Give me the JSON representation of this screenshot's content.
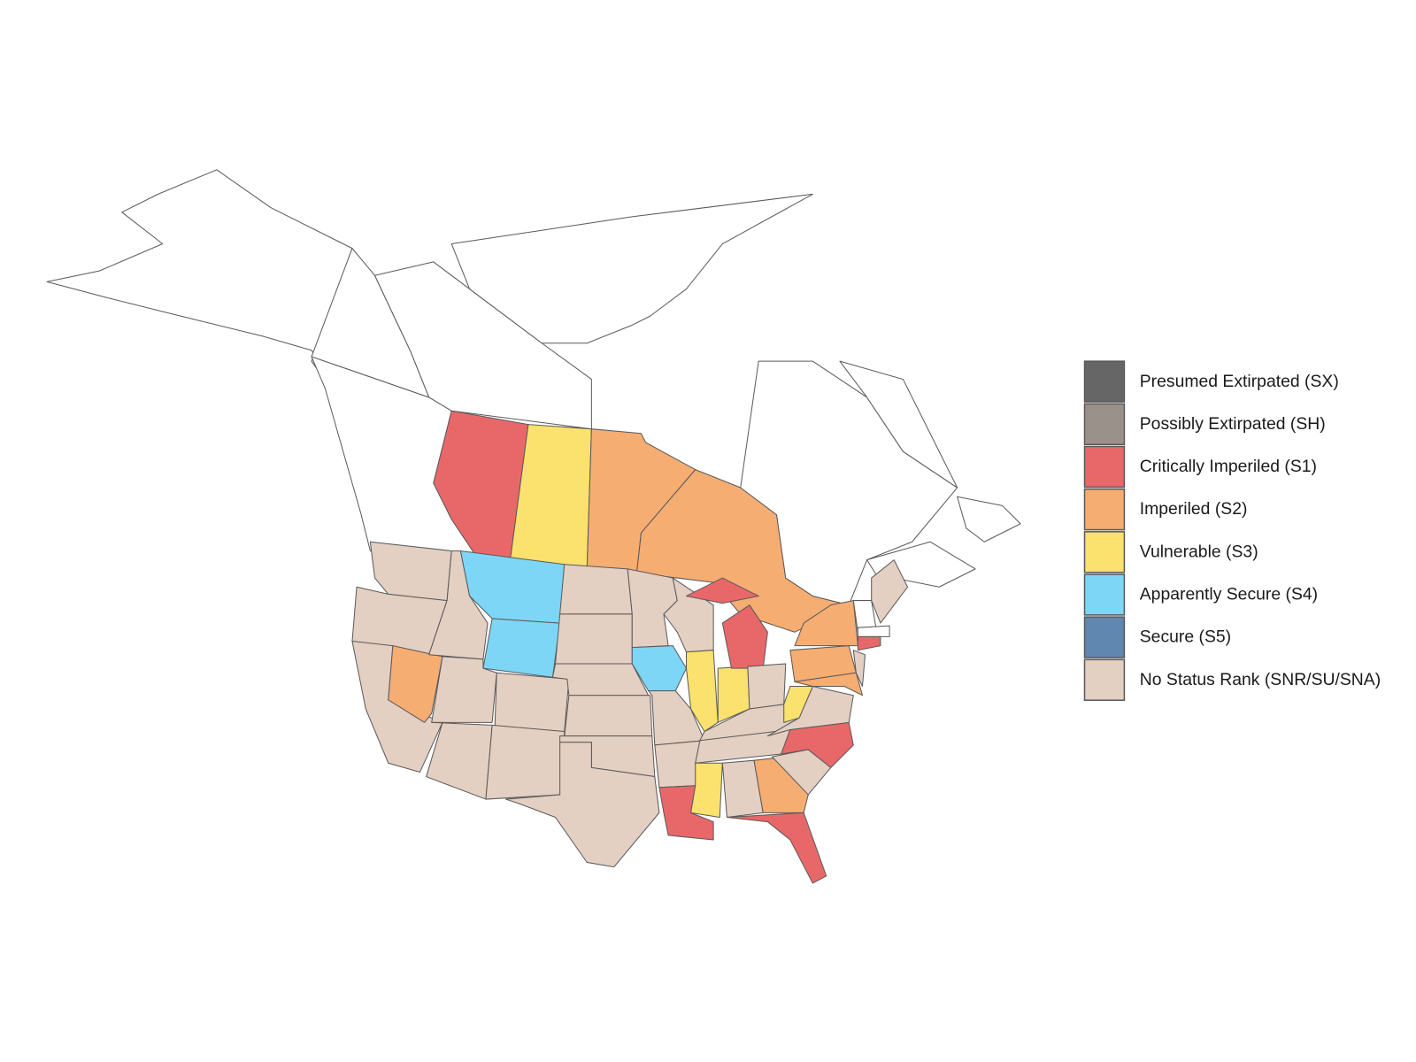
{
  "legend": {
    "items": [
      {
        "label": "Presumed Extirpated (SX)",
        "color": "#666666"
      },
      {
        "label": "Possibly Extirpated (SH)",
        "color": "#9a928a"
      },
      {
        "label": "Critically Imperiled (S1)",
        "color": "#e8686a"
      },
      {
        "label": "Imperiled (S2)",
        "color": "#f6ad72"
      },
      {
        "label": "Vulnerable (S3)",
        "color": "#fbe16e"
      },
      {
        "label": "Apparently Secure (S4)",
        "color": "#7dd6f5"
      },
      {
        "label": "Secure (S5)",
        "color": "#5f87b0"
      },
      {
        "label": "No Status Rank (SNR/SU/SNA)",
        "color": "#e4cfc3"
      }
    ]
  }
}
